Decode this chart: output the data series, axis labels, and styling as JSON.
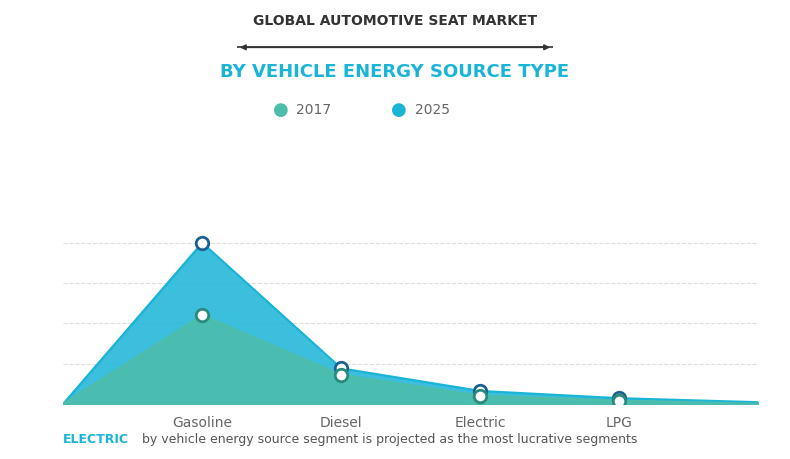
{
  "title_line1": "GLOBAL AUTOMOTIVE SEAT MARKET",
  "title_line2": "BY VEHICLE ENERGY SOURCE TYPE",
  "categories": [
    "Gasoline",
    "Diesel",
    "Electric",
    "LPG"
  ],
  "x_positions": [
    1,
    2,
    3,
    4
  ],
  "values_2017": [
    0,
    55,
    18,
    5,
    2,
    0
  ],
  "values_2025": [
    0,
    100,
    22,
    8,
    3.5,
    1
  ],
  "x_2017": [
    0,
    1,
    2,
    3,
    4,
    5
  ],
  "x_2025": [
    0,
    1,
    2,
    3,
    4,
    5
  ],
  "color_2017": "#4dbdab",
  "color_2025": "#1ab4d7",
  "marker_edge_2017": "#2a8a7a",
  "marker_edge_2025": "#1a6090",
  "background_color": "#ffffff",
  "grid_color": "#dddddd",
  "annotation_electric": "ELECTRIC",
  "annotation_electric_color": "#1ab4d7",
  "annotation_rest": " by vehicle energy source segment is projected as the most lucrative segments",
  "annotation_color": "#555555",
  "legend_label_2017": "2017",
  "legend_label_2025": "2025",
  "ylim": [
    0,
    120
  ],
  "xlim": [
    0,
    5
  ],
  "title_line1_fontsize": 10,
  "title_line2_fontsize": 13,
  "xtick_labels": [
    "Gasoline",
    "Diesel",
    "Electric",
    "LPG"
  ],
  "xtick_positions": [
    1,
    2,
    3,
    4
  ]
}
